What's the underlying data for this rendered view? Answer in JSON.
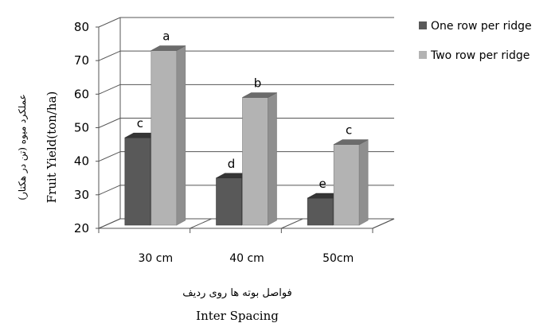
{
  "chart_data": {
    "type": "bar",
    "categories": [
      "30 cm",
      "40 cm",
      "50cm"
    ],
    "series": [
      {
        "name": "One row per ridge",
        "values": [
          47,
          35,
          29
        ],
        "labels": [
          "c",
          "d",
          "e"
        ],
        "color": "#595959"
      },
      {
        "name": "Two row per ridge",
        "values": [
          73,
          59,
          45
        ],
        "labels": [
          "a",
          "b",
          "c"
        ],
        "color": "#b3b3b3"
      }
    ],
    "ylim": [
      20,
      80
    ],
    "yticks": [
      "20",
      "30",
      "40",
      "50",
      "60",
      "70",
      "80"
    ],
    "ylabel": "Fruit Yield(ton/ha)",
    "ylabel_fa": "عملکرد میوه (تن در هکتار)",
    "xlabel": "Inter Spacing",
    "xlabel_fa": "فواصل بوته ها روی ردیف",
    "legend_position": "right",
    "grid": true,
    "three_d": true
  }
}
